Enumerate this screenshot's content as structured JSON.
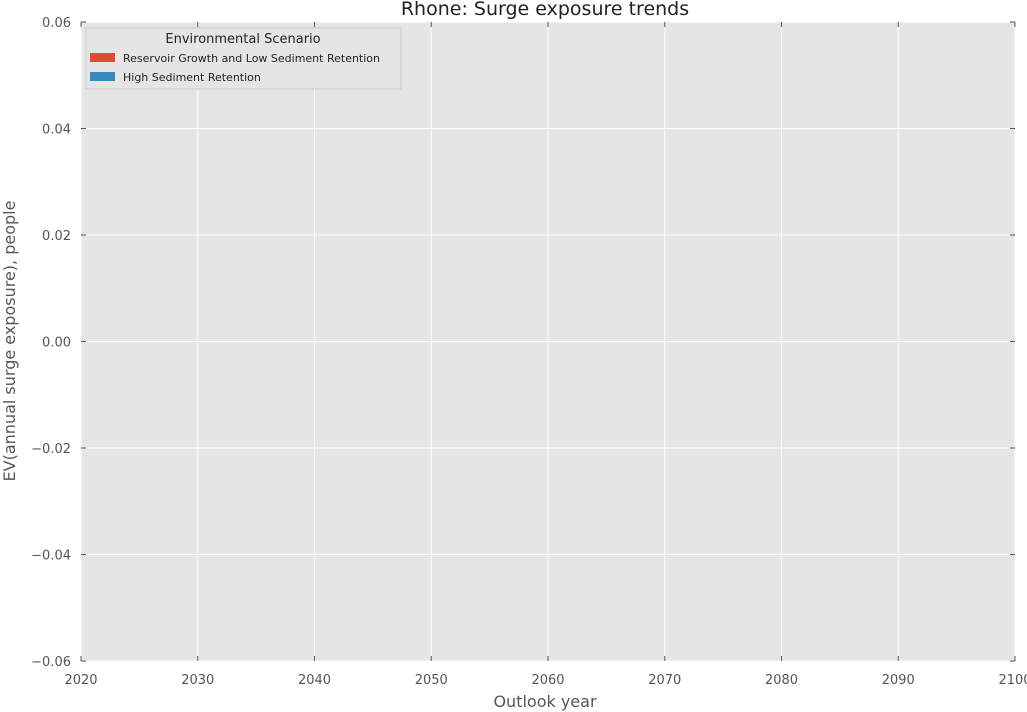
{
  "chart_data": {
    "type": "area",
    "title": "Rhone: Surge exposure trends",
    "xlabel": "Outlook year",
    "ylabel": "EV(annual surge exposure), people",
    "xlim": [
      2020,
      2100
    ],
    "ylim": [
      -0.06,
      0.06
    ],
    "x_ticks": [
      2020,
      2030,
      2040,
      2050,
      2060,
      2070,
      2080,
      2090,
      2100
    ],
    "x_tick_labels": [
      "2020",
      "2030",
      "2040",
      "2050",
      "2060",
      "2070",
      "2080",
      "2090",
      "2100"
    ],
    "y_ticks": [
      0.06,
      0.04,
      0.02,
      0.0,
      -0.02,
      -0.04,
      -0.06
    ],
    "y_tick_labels": [
      "0.06",
      "0.04",
      "0.02",
      "0.00",
      "−0.02",
      "−0.04",
      "−0.06"
    ],
    "grid": true,
    "legend": {
      "title": "Environmental Scenario",
      "placement": "top-left"
    },
    "series": [
      {
        "name": "Reservoir Growth and Low Sediment Retention",
        "color": "#e24a33",
        "x": [],
        "values": []
      },
      {
        "name": "High Sediment Retention",
        "color": "#348abd",
        "x": [],
        "values": []
      }
    ]
  }
}
